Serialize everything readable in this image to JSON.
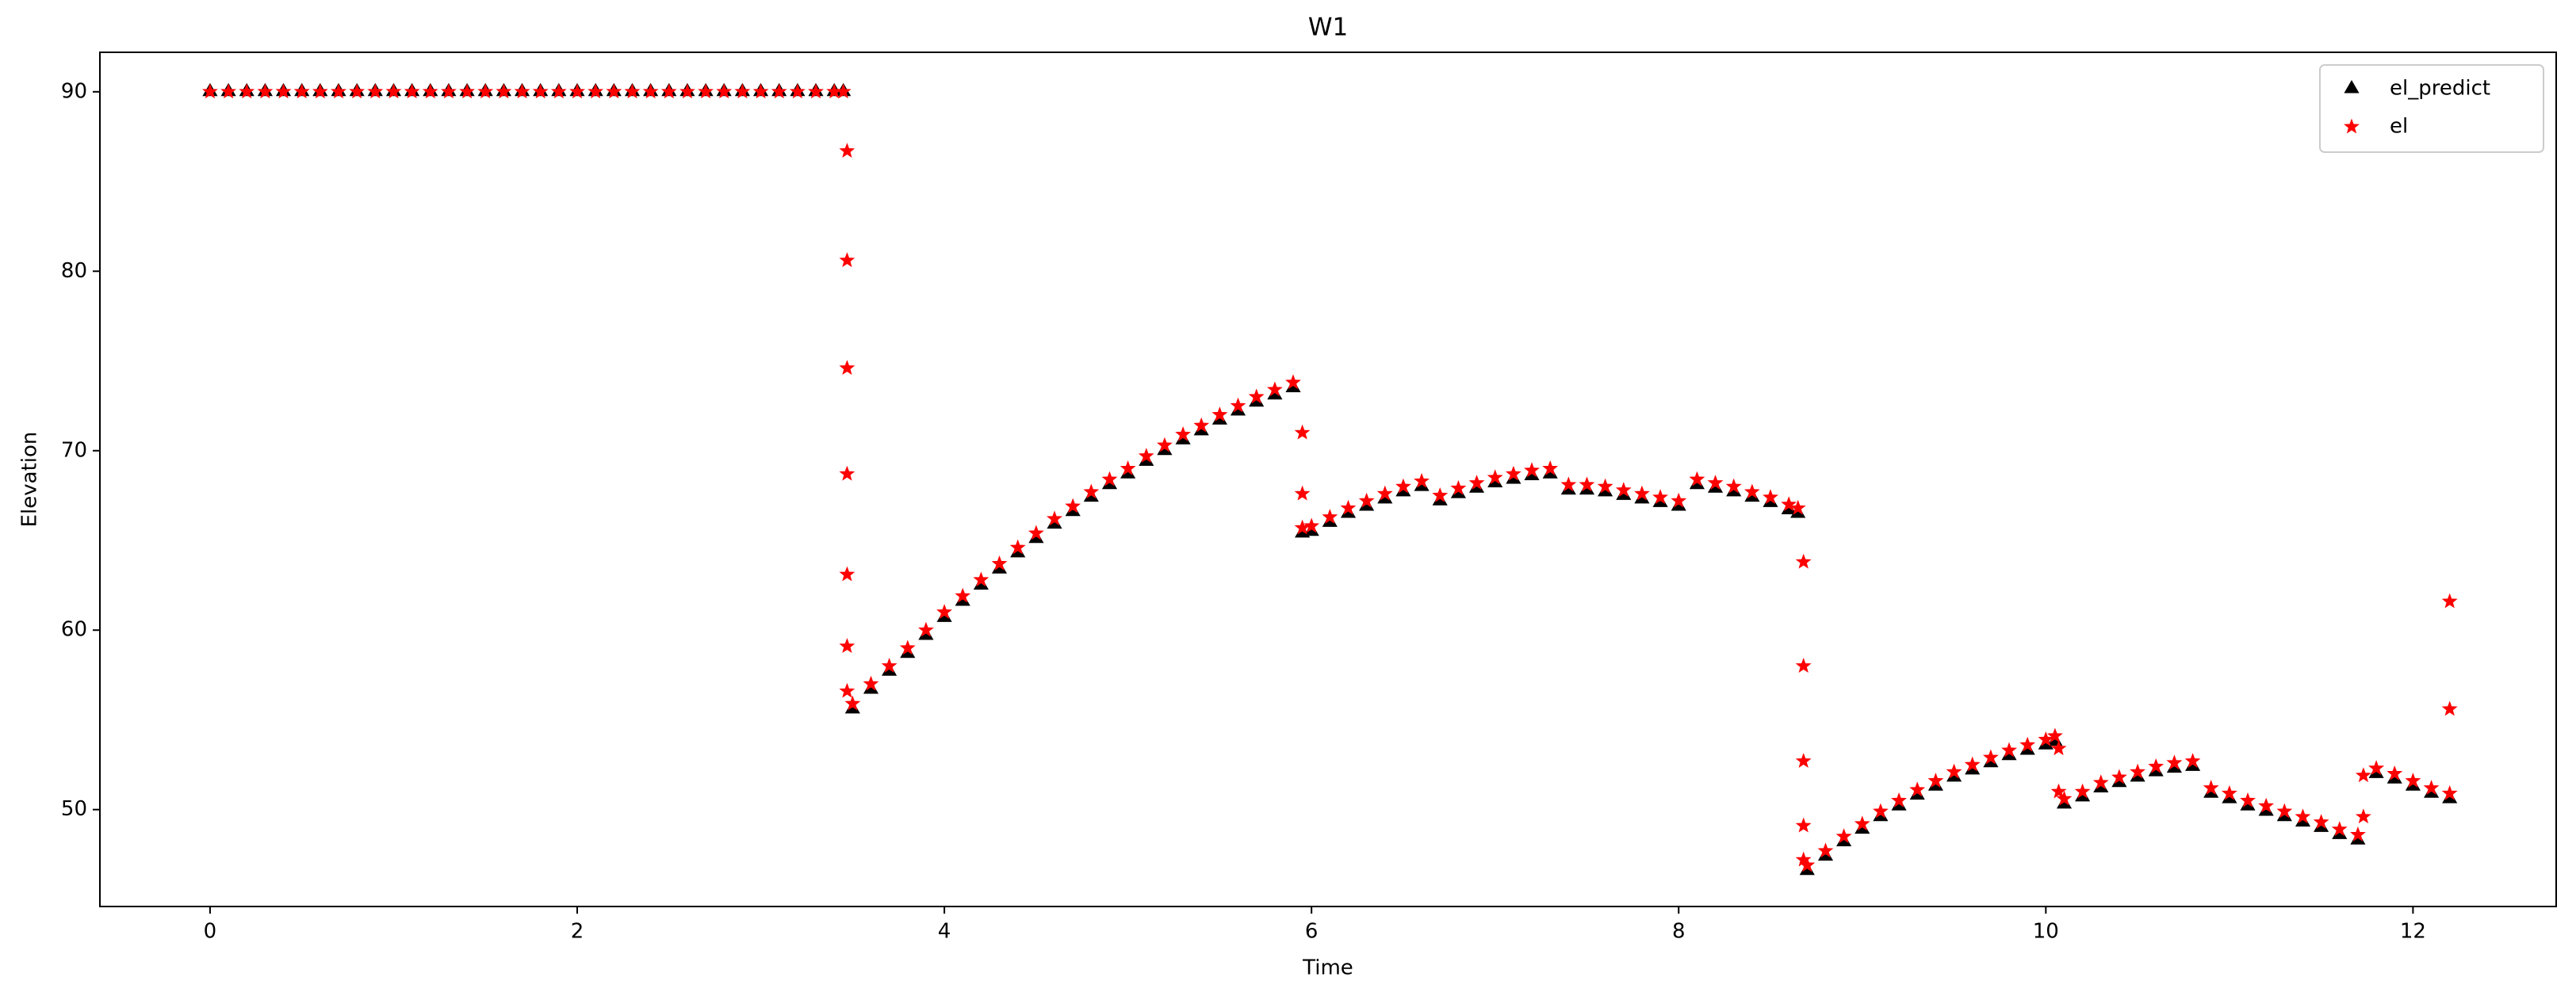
{
  "chart_data": {
    "type": "scatter",
    "title": "W1",
    "x_label": "Time",
    "y_label": "Elevation",
    "x": [
      0,
      0.1,
      0.2,
      0.3,
      0.4,
      0.5,
      0.6,
      0.7,
      0.8,
      0.9,
      1.0,
      1.1,
      1.2,
      1.3,
      1.4,
      1.5,
      1.6,
      1.7,
      1.8,
      1.9,
      2.0,
      2.1,
      2.2,
      2.3,
      2.4,
      2.5,
      2.6,
      2.7,
      2.8,
      2.9,
      3.0,
      3.1,
      3.2,
      3.3,
      3.4,
      3.45,
      3.47,
      3.47,
      3.47,
      3.47,
      3.47,
      3.47,
      3.47,
      3.5,
      3.6,
      3.7,
      3.8,
      3.9,
      4.0,
      4.1,
      4.2,
      4.3,
      4.4,
      4.5,
      4.6,
      4.7,
      4.8,
      4.9,
      5.0,
      5.1,
      5.2,
      5.3,
      5.4,
      5.5,
      5.6,
      5.7,
      5.8,
      5.9,
      5.95,
      5.95,
      5.95,
      6.0,
      6.1,
      6.2,
      6.3,
      6.4,
      6.5,
      6.6,
      6.7,
      6.8,
      6.9,
      7.0,
      7.1,
      7.2,
      7.3,
      7.4,
      7.5,
      7.6,
      7.7,
      7.8,
      7.9,
      8.0,
      8.1,
      8.2,
      8.3,
      8.4,
      8.5,
      8.6,
      8.65,
      8.68,
      8.68,
      8.68,
      8.68,
      8.68,
      8.7,
      8.8,
      8.9,
      9.0,
      9.1,
      9.2,
      9.3,
      9.4,
      9.5,
      9.6,
      9.7,
      9.8,
      9.9,
      10.0,
      10.05,
      10.07,
      10.07,
      10.1,
      10.2,
      10.3,
      10.4,
      10.5,
      10.6,
      10.7,
      10.8,
      10.9,
      11.0,
      11.1,
      11.2,
      11.3,
      11.4,
      11.5,
      11.6,
      11.7,
      11.73,
      11.73,
      11.8,
      11.9,
      12.0,
      12.1,
      12.2,
      12.2,
      12.2
    ],
    "series": [
      {
        "name": "el_predict",
        "color": "#000000",
        "marker": "triangle",
        "values": [
          90,
          90,
          90,
          90,
          90,
          90,
          90,
          90,
          90,
          90,
          90,
          90,
          90,
          90,
          90,
          90,
          90,
          90,
          90,
          90,
          90,
          90,
          90,
          90,
          90,
          90,
          90,
          90,
          90,
          90,
          90,
          90,
          90,
          90,
          90,
          90,
          null,
          null,
          null,
          null,
          null,
          null,
          null,
          55.6,
          56.7,
          57.7,
          58.7,
          59.7,
          60.7,
          61.6,
          62.5,
          63.4,
          64.3,
          65.1,
          65.9,
          66.6,
          67.4,
          68.1,
          68.7,
          69.4,
          70.0,
          70.6,
          71.1,
          71.7,
          72.2,
          72.7,
          73.1,
          73.5,
          null,
          null,
          65.4,
          65.5,
          66.0,
          66.5,
          66.9,
          67.3,
          67.7,
          68.0,
          67.2,
          67.6,
          67.9,
          68.2,
          68.4,
          68.6,
          68.7,
          67.8,
          67.8,
          67.7,
          67.5,
          67.3,
          67.1,
          66.9,
          68.1,
          67.9,
          67.7,
          67.4,
          67.1,
          66.7,
          66.5,
          null,
          null,
          null,
          null,
          null,
          46.6,
          47.4,
          48.2,
          48.9,
          49.6,
          50.2,
          50.8,
          51.3,
          51.8,
          52.2,
          52.6,
          53.0,
          53.3,
          53.6,
          53.8,
          null,
          null,
          50.3,
          50.7,
          51.2,
          51.5,
          51.8,
          52.1,
          52.3,
          52.4,
          50.9,
          50.6,
          50.2,
          49.9,
          49.6,
          49.3,
          49.0,
          48.6,
          48.3,
          null,
          null,
          52.0,
          51.7,
          51.3,
          50.9,
          50.6,
          null,
          null
        ]
      },
      {
        "name": "el",
        "color": "#ff0000",
        "marker": "star",
        "values": [
          90,
          90,
          90,
          90,
          90,
          90,
          90,
          90,
          90,
          90,
          90,
          90,
          90,
          90,
          90,
          90,
          90,
          90,
          90,
          90,
          90,
          90,
          90,
          90,
          90,
          90,
          90,
          90,
          90,
          90,
          90,
          90,
          90,
          90,
          90,
          90,
          86.7,
          80.6,
          74.6,
          68.7,
          63.1,
          59.1,
          56.6,
          55.9,
          57.0,
          58.0,
          59.0,
          60.0,
          61.0,
          61.9,
          62.8,
          63.7,
          64.6,
          65.4,
          66.2,
          66.9,
          67.7,
          68.4,
          69.0,
          69.7,
          70.3,
          70.9,
          71.4,
          72.0,
          72.5,
          73.0,
          73.4,
          73.8,
          71.0,
          67.6,
          65.7,
          65.8,
          66.3,
          66.8,
          67.2,
          67.6,
          68.0,
          68.3,
          67.5,
          67.9,
          68.2,
          68.5,
          68.7,
          68.9,
          69.0,
          68.1,
          68.1,
          68.0,
          67.8,
          67.6,
          67.4,
          67.2,
          68.4,
          68.2,
          68.0,
          67.7,
          67.4,
          67.0,
          66.8,
          63.8,
          58.0,
          52.7,
          49.1,
          47.2,
          46.9,
          47.7,
          48.5,
          49.2,
          49.9,
          50.5,
          51.1,
          51.6,
          52.1,
          52.5,
          52.9,
          53.3,
          53.6,
          53.9,
          54.1,
          53.4,
          51.0,
          50.6,
          51.0,
          51.5,
          51.8,
          52.1,
          52.4,
          52.6,
          52.7,
          51.2,
          50.9,
          50.5,
          50.2,
          49.9,
          49.6,
          49.3,
          48.9,
          48.6,
          49.6,
          51.9,
          52.3,
          52.0,
          51.6,
          51.2,
          50.9,
          55.6,
          61.6
        ]
      }
    ],
    "xlim": [
      -0.6,
      12.78
    ],
    "ylim": [
      44.6,
      92.2
    ],
    "xticks": [
      0,
      2,
      4,
      6,
      8,
      10,
      12
    ],
    "yticks": [
      50,
      60,
      70,
      80,
      90
    ],
    "grid": false,
    "legend": "upper right"
  }
}
